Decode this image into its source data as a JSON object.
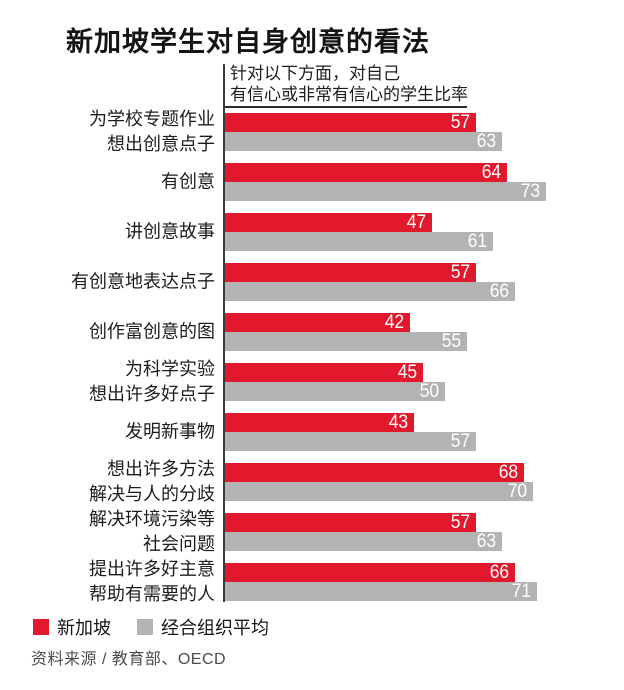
{
  "title": "新加坡学生对自身创意的看法",
  "subtitle": {
    "line1": "针对以下方面，对自己",
    "line2": "有信心或非常有信心的学生比率"
  },
  "legend": {
    "items": [
      {
        "label": "新加坡",
        "series": "singapore"
      },
      {
        "label": "经合组织平均",
        "series": "oecd"
      }
    ]
  },
  "source": "资料来源 / 教育部、OECD",
  "colors": {
    "singapore": "#e2192c",
    "oecd": "#b3b3b3",
    "axis": "#3a3a3a",
    "value_text": "#ffffff"
  },
  "chart_data": {
    "type": "bar",
    "orientation": "horizontal",
    "unit": "percent",
    "title": "新加坡学生对自身创意的看法",
    "subtitle": "针对以下方面，对自己有信心或非常有信心的学生比率",
    "xlim": [
      0,
      76
    ],
    "grid": false,
    "legend_position": "bottom",
    "categories": [
      [
        "为学校专题作业",
        "想出创意点子"
      ],
      [
        "有创意"
      ],
      [
        "讲创意故事"
      ],
      [
        "有创意地表达点子"
      ],
      [
        "创作富创意的图"
      ],
      [
        "为科学实验",
        "想出许多好点子"
      ],
      [
        "发明新事物"
      ],
      [
        "想出许多方法",
        "解决与人的分歧"
      ],
      [
        "解决环境污染等",
        "社会问题"
      ],
      [
        "提出许多好主意",
        "帮助有需要的人"
      ]
    ],
    "series": [
      {
        "name": "新加坡",
        "values": [
          57,
          64,
          47,
          57,
          42,
          45,
          43,
          68,
          57,
          66
        ]
      },
      {
        "name": "经合组织平均",
        "values": [
          63,
          73,
          61,
          66,
          55,
          50,
          57,
          70,
          63,
          71
        ]
      }
    ]
  }
}
